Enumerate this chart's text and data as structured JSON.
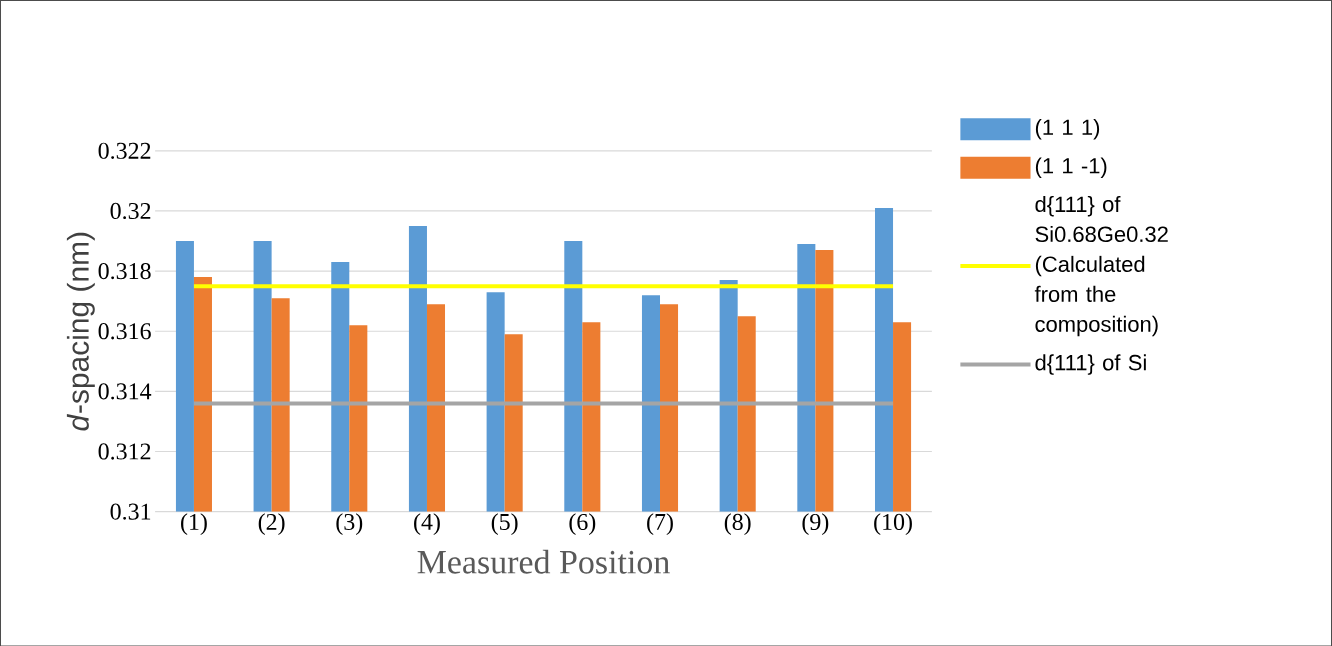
{
  "chart_data": {
    "type": "bar",
    "xlabel": "Measured Position",
    "ylabel": "*d*-spacing  (nm)",
    "categories": [
      "(1)",
      "(2)",
      "(3)",
      "(4)",
      "(5)",
      "(6)",
      "(7)",
      "(8)",
      "(9)",
      "(10)"
    ],
    "series": [
      {
        "name": "(1  1  1)",
        "color": "#5b9bd5",
        "values": [
          0.319,
          0.319,
          0.3183,
          0.3195,
          0.3173,
          0.319,
          0.3172,
          0.3177,
          0.3189,
          0.3201
        ]
      },
      {
        "name": "(1  1  -1)",
        "color": "#ed7d31",
        "values": [
          0.3178,
          0.3171,
          0.3162,
          0.3169,
          0.3159,
          0.3163,
          0.3169,
          0.3165,
          0.3187,
          0.3163
        ]
      },
      {
        "name": "d{111} of Si0.68Ge0.32 (Calculated from the composition)",
        "type": "line",
        "color": "#ffff00",
        "values": [
          0.3175,
          0.3175,
          0.3175,
          0.3175,
          0.3175,
          0.3175,
          0.3175,
          0.3175,
          0.3175,
          0.3175
        ]
      },
      {
        "name": "d{111} of Si",
        "type": "line",
        "color": "#a5a5a5",
        "values": [
          0.3136,
          0.3136,
          0.3136,
          0.3136,
          0.3136,
          0.3136,
          0.3136,
          0.3136,
          0.3136,
          0.3136
        ]
      }
    ],
    "ylim": [
      0.31,
      0.322
    ],
    "yticks": [
      0.31,
      0.312,
      0.314,
      0.316,
      0.318,
      0.32,
      0.322
    ],
    "grid": "y",
    "legend": "right",
    "marker": "none"
  }
}
